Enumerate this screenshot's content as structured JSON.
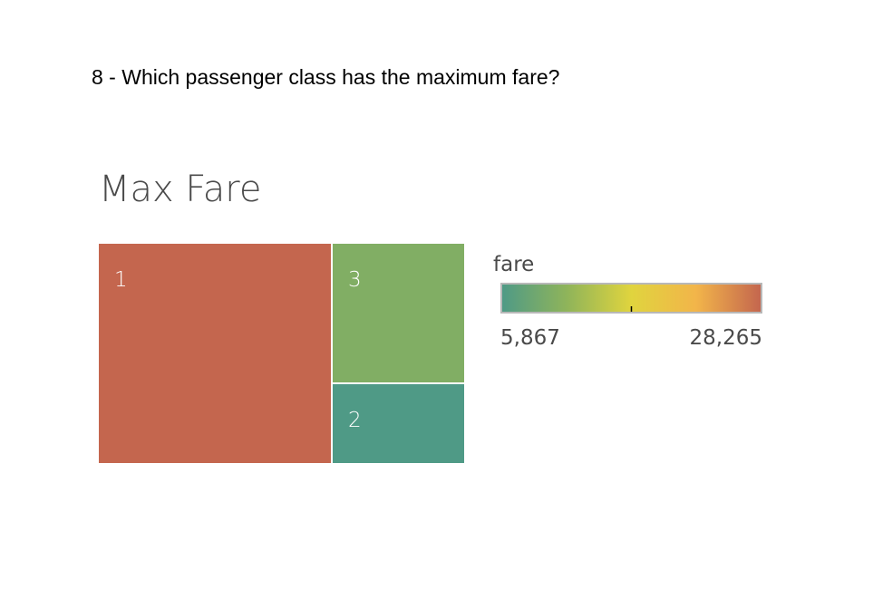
{
  "question": "8 - Which passenger class has the maximum fare?",
  "chart_data": {
    "type": "treemap",
    "title": "Max Fare",
    "size_measure": "fare",
    "color_measure": "fare",
    "items": [
      {
        "label": "1",
        "value": 28265
      },
      {
        "label": "3",
        "value": 10200
      },
      {
        "label": "2",
        "value": 5867
      }
    ],
    "legend": {
      "title": "fare",
      "min_label": "5,867",
      "max_label": "28,265",
      "min": 5867,
      "max": 28265,
      "placement": "right",
      "gradient_colors": [
        "#4f9a86",
        "#8fb45a",
        "#e0d43e",
        "#f2b54a",
        "#c4664e"
      ]
    }
  }
}
